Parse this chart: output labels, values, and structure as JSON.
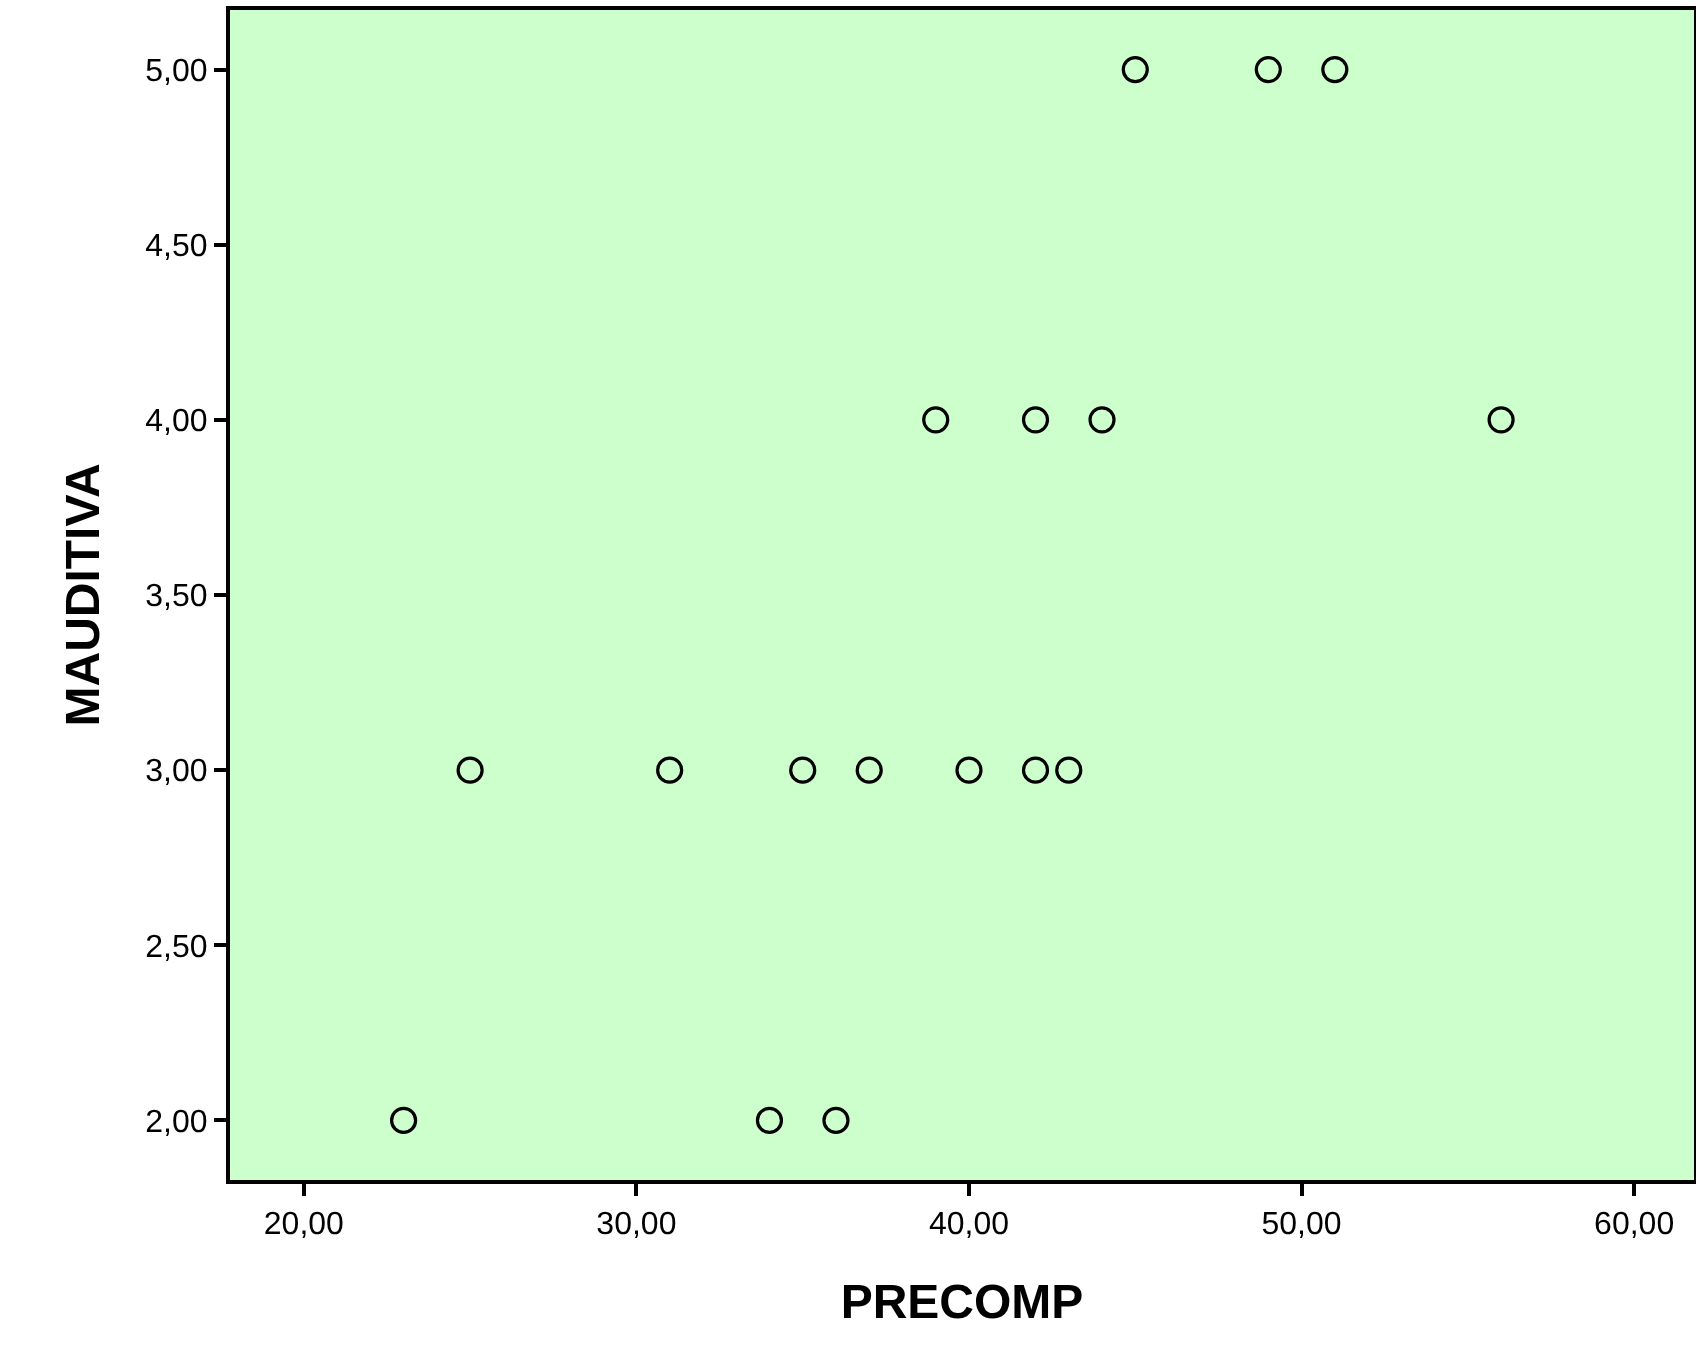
{
  "chart_data": {
    "type": "scatter",
    "xlabel": "PRECOMP",
    "ylabel": "MAUDITIVA",
    "marker": "circle",
    "grid": false,
    "x": [
      45,
      49,
      51,
      39,
      42,
      44,
      56,
      25,
      31,
      35,
      37,
      40,
      42,
      43,
      23,
      34,
      36
    ],
    "values": [
      5,
      5,
      5,
      4,
      4,
      4,
      4,
      3,
      3,
      3,
      3,
      3,
      3,
      3,
      2,
      2,
      2
    ],
    "color": "#000000",
    "xlim": [
      17.78,
      61.8
    ],
    "ylim": [
      1.83,
      5.17
    ],
    "xticks": [
      {
        "value": 20,
        "label": "20,00"
      },
      {
        "value": 30,
        "label": "30,00"
      },
      {
        "value": 40,
        "label": "40,00"
      },
      {
        "value": 50,
        "label": "50,00"
      },
      {
        "value": 60,
        "label": "60,00"
      }
    ],
    "yticks": [
      {
        "value": 2,
        "label": "2,00"
      },
      {
        "value": 2.5,
        "label": "2,50"
      },
      {
        "value": 3,
        "label": "3,00"
      },
      {
        "value": 3.5,
        "label": "3,50"
      },
      {
        "value": 4,
        "label": "4,00"
      },
      {
        "value": 4.5,
        "label": "4,50"
      },
      {
        "value": 5,
        "label": "5,00"
      }
    ]
  }
}
